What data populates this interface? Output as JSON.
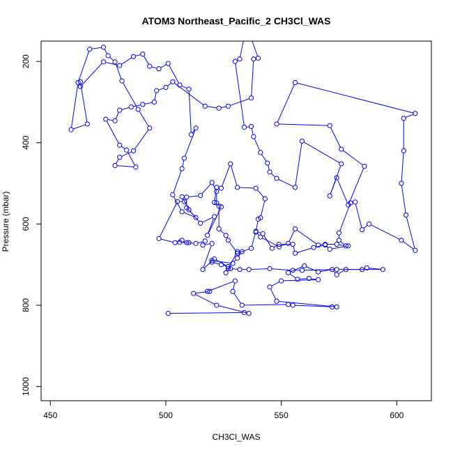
{
  "chart_data": {
    "type": "line",
    "title": "ATOM3 Northeast_Pacific_2 CH3Cl_WAS",
    "xlabel": "CH3Cl_WAS",
    "ylabel": "Pressure (mbar)",
    "xlim": [
      446,
      615
    ],
    "ylim": [
      1035,
      150
    ],
    "y_reversed": true,
    "grid": false,
    "legend": "none",
    "x_ticks": [
      450,
      500,
      550,
      600
    ],
    "y_ticks": [
      200,
      400,
      600,
      800,
      1000
    ],
    "series_color": "#0000ff",
    "marker": "open-circle",
    "series": [
      {
        "points": [
          [
            501,
            820
          ],
          [
            534,
            818
          ],
          [
            536,
            820
          ],
          [
            522,
            800
          ],
          [
            512,
            771
          ],
          [
            519,
            766
          ],
          [
            518,
            766
          ],
          [
            530,
            740
          ],
          [
            529,
            766
          ],
          [
            533,
            800
          ],
          [
            553,
            798
          ],
          [
            555,
            800
          ],
          [
            572,
            804
          ],
          [
            574,
            804
          ],
          [
            548,
            790
          ],
          [
            545,
            755
          ],
          [
            550,
            740
          ],
          [
            566,
            737
          ],
          [
            562,
            734
          ],
          [
            557,
            736
          ],
          [
            553,
            720
          ],
          [
            560,
            703
          ],
          [
            566,
            718
          ],
          [
            572,
            712
          ],
          [
            574,
            725
          ],
          [
            578,
            712
          ],
          [
            585,
            712
          ],
          [
            587,
            708
          ],
          [
            594,
            712
          ],
          [
            574,
            712
          ],
          [
            559,
            714
          ],
          [
            555,
            714
          ],
          [
            545,
            710
          ],
          [
            536,
            712
          ],
          [
            532,
            712
          ],
          [
            528,
            710
          ],
          [
            527,
            705
          ],
          [
            524,
            700
          ],
          [
            520,
            694
          ],
          [
            520,
            690
          ],
          [
            529,
            697
          ],
          [
            531,
            684
          ],
          [
            533,
            668
          ],
          [
            531,
            668
          ],
          [
            527,
            710
          ],
          [
            526,
            720
          ],
          [
            527,
            705
          ],
          [
            521,
            686
          ],
          [
            516,
            712
          ],
          [
            520,
            648
          ],
          [
            516,
            652
          ],
          [
            517,
            642
          ],
          [
            513,
            648
          ],
          [
            509,
            646
          ],
          [
            510,
            646
          ],
          [
            506,
            645
          ],
          [
            507,
            640
          ],
          [
            504,
            646
          ],
          [
            497,
            636
          ],
          [
            505,
            545
          ],
          [
            508,
            545
          ],
          [
            507,
            533
          ],
          [
            510,
            565
          ],
          [
            515,
            598
          ],
          [
            521,
            582
          ],
          [
            518,
            628
          ],
          [
            524,
            558
          ],
          [
            521,
            547
          ],
          [
            522,
            510
          ],
          [
            524,
            512
          ],
          [
            528,
            452
          ],
          [
            531,
            510
          ],
          [
            539,
            512
          ],
          [
            543,
            538
          ],
          [
            541,
            585
          ],
          [
            540,
            588
          ],
          [
            539,
            620
          ],
          [
            541,
            632
          ],
          [
            549,
            656
          ],
          [
            553,
            648
          ],
          [
            556,
            612
          ],
          [
            566,
            652
          ],
          [
            569,
            650
          ],
          [
            574,
            650
          ],
          [
            578,
            654
          ],
          [
            575,
            640
          ],
          [
            575,
            622
          ],
          [
            580,
            548
          ],
          [
            582,
            546
          ],
          [
            585,
            614
          ],
          [
            588,
            600
          ],
          [
            602,
            640
          ],
          [
            608,
            665
          ],
          [
            604,
            578
          ],
          [
            602,
            500
          ],
          [
            603,
            420
          ],
          [
            603,
            340
          ],
          [
            608,
            328
          ],
          [
            556,
            252
          ],
          [
            548,
            354
          ],
          [
            571,
            358
          ],
          [
            576,
            416
          ],
          [
            586,
            458
          ],
          [
            579,
            553
          ],
          [
            574,
            486
          ],
          [
            571,
            531
          ],
          [
            576,
            452
          ],
          [
            559,
            396
          ],
          [
            556,
            510
          ],
          [
            548,
            488
          ],
          [
            545,
            472
          ],
          [
            544,
            450
          ],
          [
            541,
            424
          ],
          [
            538,
            385
          ],
          [
            537,
            360
          ],
          [
            534,
            362
          ],
          [
            530,
            200
          ],
          [
            532,
            194
          ],
          [
            535,
            110
          ],
          [
            540,
            192
          ],
          [
            538,
            194
          ],
          [
            537,
            290
          ],
          [
            527,
            310
          ],
          [
            523,
            315
          ],
          [
            517,
            310
          ],
          [
            503,
            250
          ],
          [
            500,
            264
          ],
          [
            496,
            272
          ],
          [
            495,
            300
          ],
          [
            490,
            306
          ],
          [
            485,
            312
          ],
          [
            480,
            320
          ],
          [
            478,
            346
          ],
          [
            474,
            342
          ],
          [
            480,
            406
          ],
          [
            483,
            418
          ],
          [
            487,
            460
          ],
          [
            478,
            456
          ],
          [
            480,
            436
          ],
          [
            486,
            420
          ],
          [
            493,
            364
          ],
          [
            488,
            318
          ],
          [
            481,
            248
          ],
          [
            478,
            201
          ],
          [
            475,
            186
          ],
          [
            473,
            165
          ],
          [
            467,
            170
          ],
          [
            462,
            252
          ],
          [
            459,
            368
          ],
          [
            466,
            354
          ],
          [
            463,
            250
          ],
          [
            463,
            262
          ],
          [
            473,
            201
          ],
          [
            480,
            210
          ],
          [
            486,
            188
          ],
          [
            490,
            182
          ],
          [
            493,
            212
          ],
          [
            497,
            218
          ],
          [
            501,
            205
          ],
          [
            506,
            258
          ],
          [
            510,
            268
          ],
          [
            511,
            380
          ],
          [
            513,
            364
          ],
          [
            508,
            438
          ],
          [
            507,
            464
          ],
          [
            503,
            528
          ],
          [
            507,
            570
          ],
          [
            513,
            584
          ],
          [
            509,
            560
          ],
          [
            509,
            534
          ],
          [
            515,
            530
          ],
          [
            520,
            498
          ],
          [
            522,
            520
          ],
          [
            522,
            548
          ],
          [
            523,
            556
          ],
          [
            523,
            612
          ],
          [
            526,
            628
          ],
          [
            527,
            640
          ],
          [
            531,
            672
          ],
          [
            537,
            660
          ],
          [
            539,
            618
          ],
          [
            542,
            624
          ],
          [
            546,
            660
          ],
          [
            549,
            650
          ],
          [
            555,
            650
          ],
          [
            556,
            672
          ],
          [
            564,
            658
          ],
          [
            569,
            652
          ],
          [
            571,
            662
          ],
          [
            579,
            654
          ]
        ]
      }
    ]
  }
}
